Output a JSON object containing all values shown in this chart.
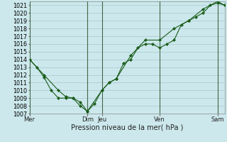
{
  "xlabel": "Pression niveau de la mer( hPa )",
  "ylim": [
    1007,
    1021.5
  ],
  "bg_color": "#cce8ec",
  "grid_color": "#a8c8cc",
  "line_color": "#1a5c1a",
  "vline_color": "#446644",
  "xtick_labels": [
    "Mer",
    "Dim",
    "Jeu",
    "Ven",
    "Sam"
  ],
  "xtick_positions": [
    0,
    4,
    5,
    9,
    13
  ],
  "xlim": [
    0,
    13.5
  ],
  "line1_x": [
    0,
    0.5,
    1.0,
    1.5,
    2.0,
    2.5,
    3.0,
    3.5,
    4.0,
    4.5,
    5.0,
    5.5,
    6.0,
    6.5,
    7.0,
    7.5,
    8.0,
    8.5,
    9.0,
    9.5,
    10.0,
    10.5,
    11.0,
    11.5,
    12.0,
    12.5,
    13.0,
    13.5
  ],
  "line1_y": [
    1014.0,
    1013.0,
    1011.7,
    1010.0,
    1009.0,
    1009.0,
    1009.0,
    1008.0,
    1007.3,
    1008.3,
    1010.0,
    1011.0,
    1011.5,
    1013.5,
    1014.0,
    1015.5,
    1016.0,
    1016.0,
    1015.5,
    1016.0,
    1016.5,
    1018.5,
    1019.0,
    1019.5,
    1020.0,
    1021.0,
    1021.3,
    1021.0
  ],
  "line2_x": [
    0,
    1.0,
    2.0,
    2.5,
    3.0,
    3.5,
    4.0,
    5.0,
    5.5,
    6.0,
    7.0,
    8.0,
    9.0,
    10.0,
    11.0,
    12.0,
    13.0,
    13.5
  ],
  "line2_y": [
    1014.0,
    1012.0,
    1010.0,
    1009.2,
    1009.0,
    1008.5,
    1007.3,
    1010.0,
    1011.0,
    1011.5,
    1014.5,
    1016.5,
    1016.5,
    1018.0,
    1019.0,
    1020.5,
    1021.5,
    1021.0
  ],
  "vline_positions": [
    0,
    4,
    5,
    9,
    13
  ]
}
